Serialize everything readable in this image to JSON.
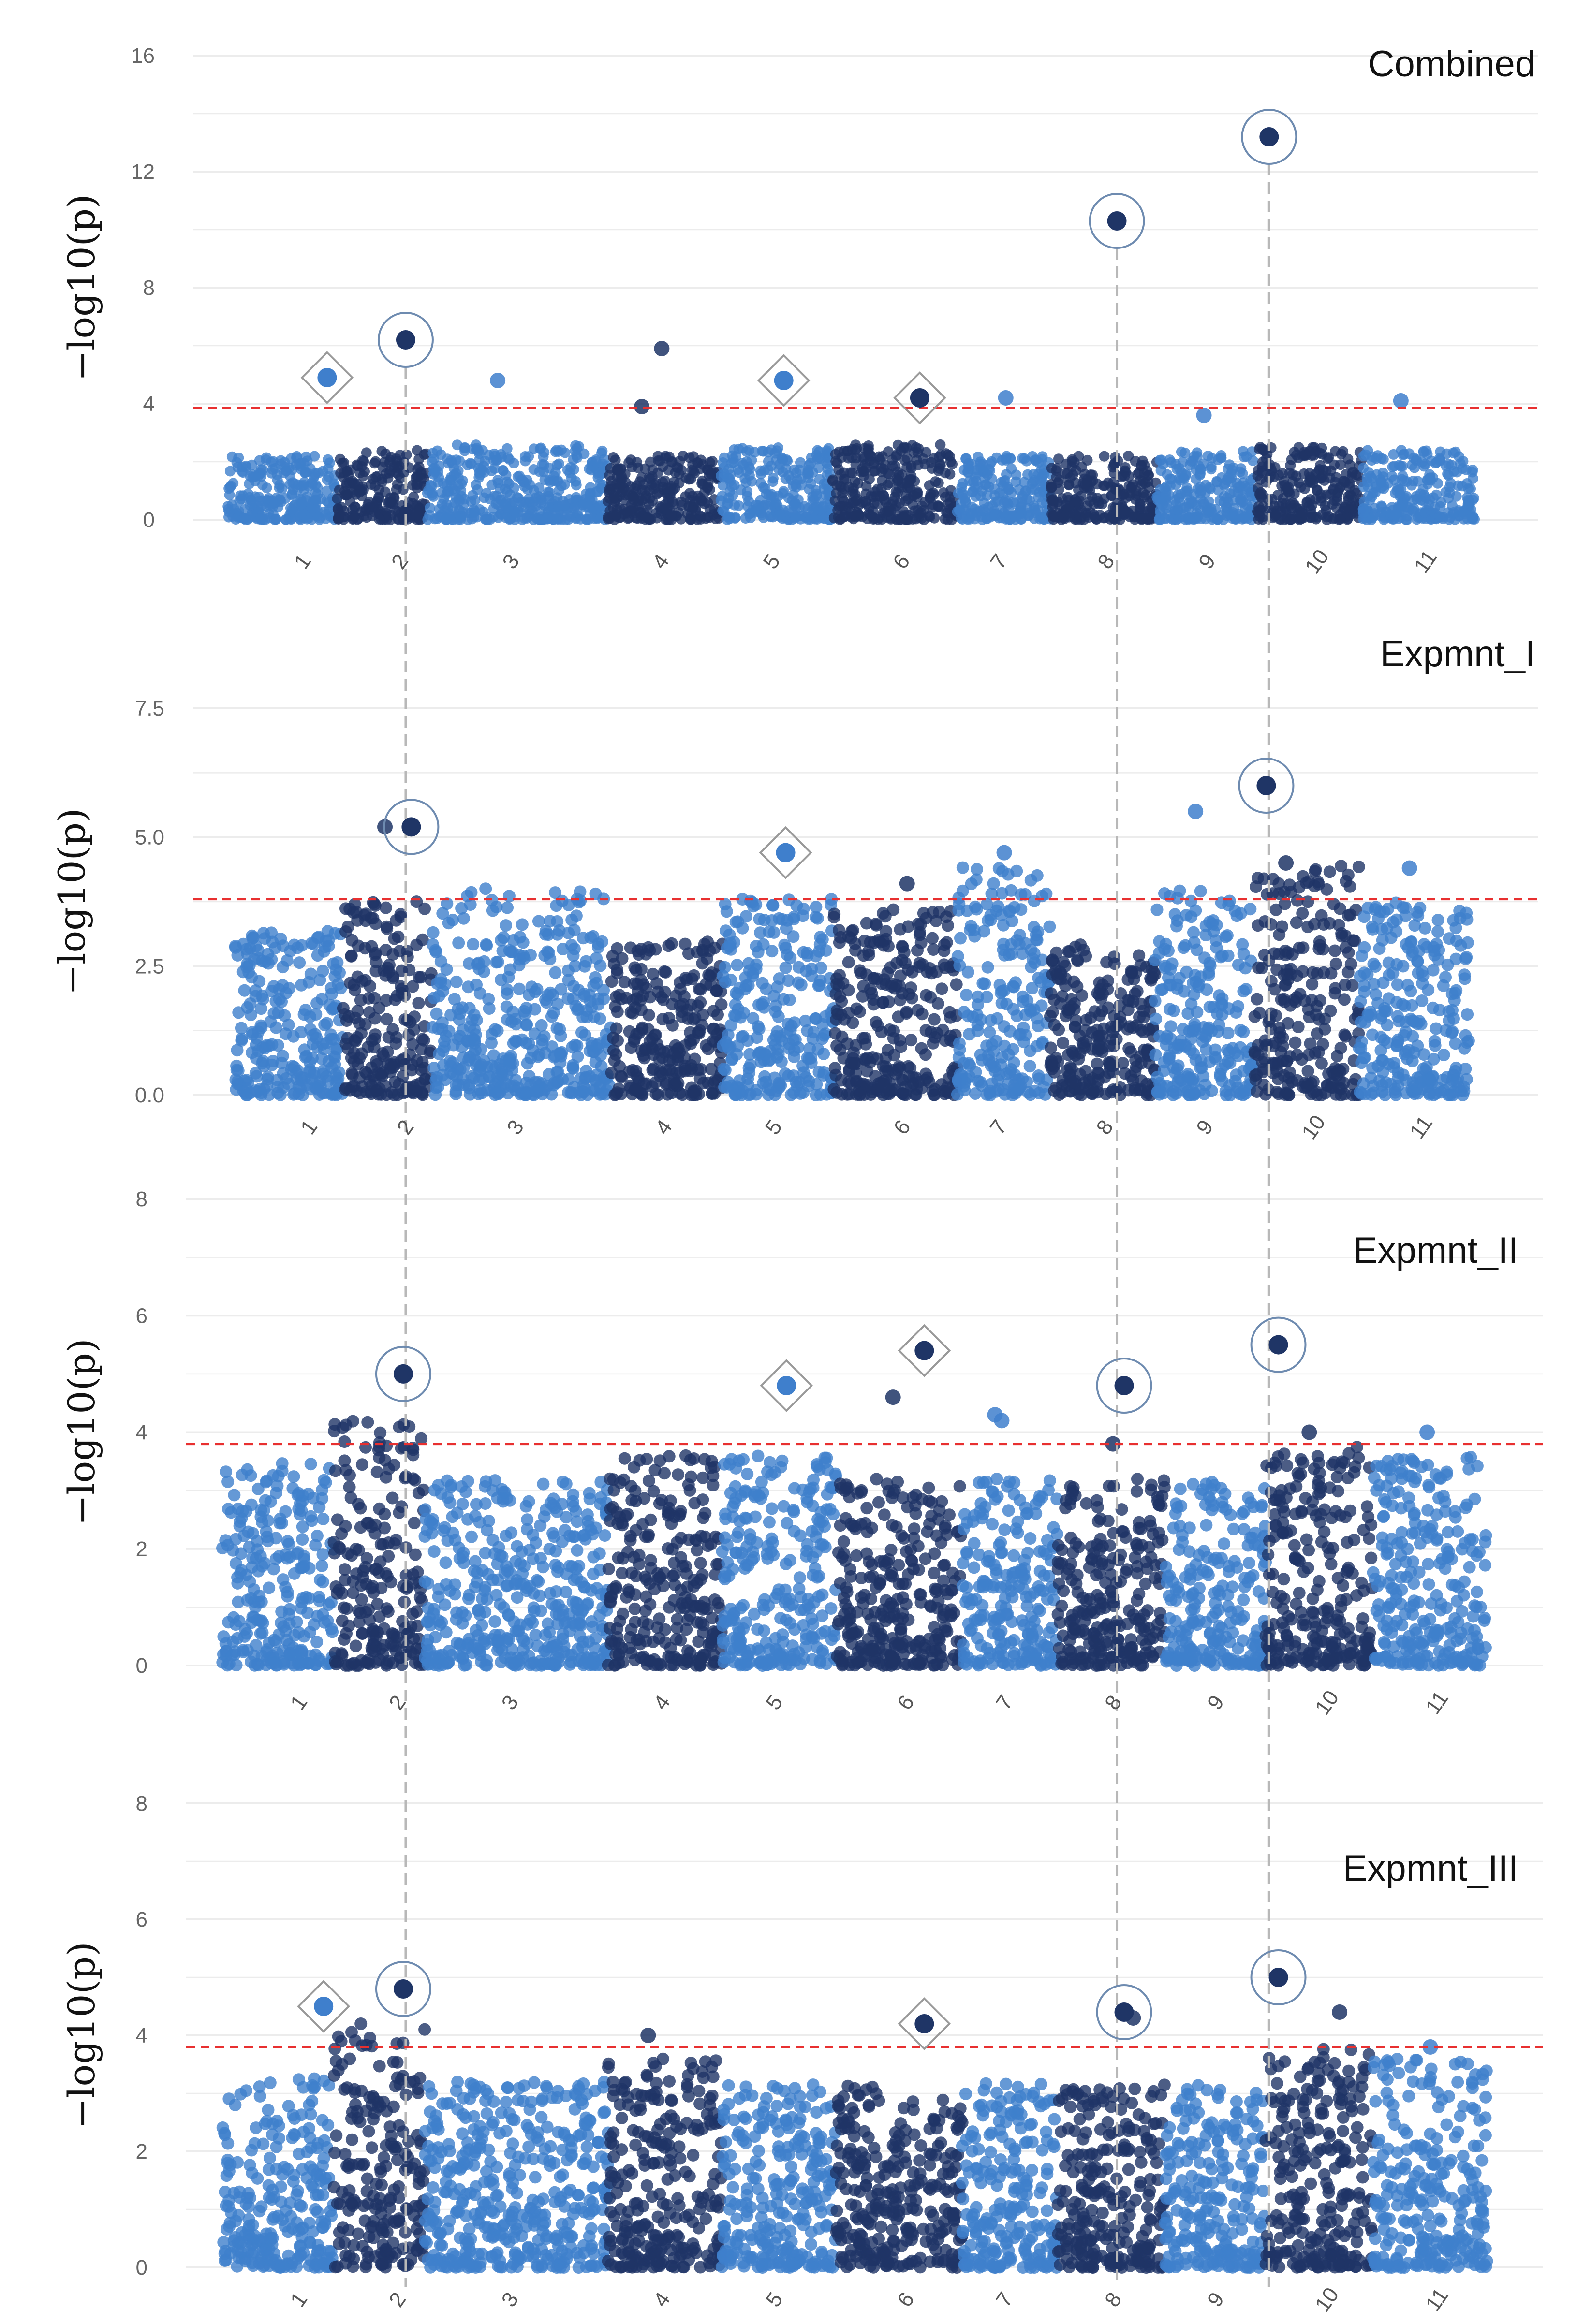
{
  "y_axis_label": "−log10(p)",
  "colors": {
    "light_blue": "#3f7fcc",
    "dark_blue": "#1f3566",
    "threshold": "#e83030",
    "gridline": "#ececec",
    "guide": "#b8b8b8",
    "marker": "#6e8bb0"
  },
  "chromosomes": [
    "1",
    "2",
    "3",
    "4",
    "5",
    "6",
    "7",
    "8",
    "9",
    "10",
    "11"
  ],
  "chart_data": [
    {
      "type": "scatter",
      "title": "Combined",
      "ylabel": "−log10(p)",
      "ylim": [
        0,
        16
      ],
      "yticks": [
        "0",
        "4",
        "8",
        "12",
        "16"
      ],
      "threshold": 3.85,
      "highlights_circle": [
        {
          "chr": "2",
          "value": 6.2
        },
        {
          "chr": "8",
          "value": 10.3
        },
        {
          "chr": "10",
          "value": 13.2
        }
      ],
      "highlights_diamond": [
        {
          "chr": "1",
          "value": 4.9
        },
        {
          "chr": "5",
          "value": 4.8
        },
        {
          "chr": "6",
          "value": 4.2
        }
      ],
      "other_peaks": [
        {
          "chr": "3",
          "value": 4.8
        },
        {
          "chr": "4",
          "value": 5.9
        },
        {
          "chr": "4",
          "value": 3.9
        },
        {
          "chr": "7",
          "value": 4.2
        },
        {
          "chr": "9",
          "value": 3.6
        },
        {
          "chr": "11",
          "value": 4.1
        }
      ]
    },
    {
      "type": "scatter",
      "title": "Expmnt_I",
      "ylabel": "−log10(p)",
      "ylim": [
        0,
        7.5
      ],
      "yticks": [
        "0.0",
        "2.5",
        "5.0",
        "7.5"
      ],
      "threshold": 3.8,
      "highlights_circle": [
        {
          "chr": "2",
          "value": 5.2
        },
        {
          "chr": "10",
          "value": 6.0
        }
      ],
      "highlights_diamond": [
        {
          "chr": "5",
          "value": 4.7
        }
      ],
      "other_peaks": [
        {
          "chr": "2",
          "value": 5.2
        },
        {
          "chr": "6",
          "value": 4.1
        },
        {
          "chr": "7",
          "value": 4.7
        },
        {
          "chr": "9",
          "value": 5.5
        },
        {
          "chr": "10",
          "value": 4.5
        },
        {
          "chr": "11",
          "value": 4.4
        }
      ]
    },
    {
      "type": "scatter",
      "title": "Expmnt_II",
      "ylabel": "−log10(p)",
      "ylim": [
        0,
        8
      ],
      "yticks": [
        "0",
        "2",
        "4",
        "6",
        "8"
      ],
      "threshold": 3.8,
      "highlights_circle": [
        {
          "chr": "2",
          "value": 5.0
        },
        {
          "chr": "8",
          "value": 4.8
        },
        {
          "chr": "10",
          "value": 5.5
        }
      ],
      "highlights_diamond": [
        {
          "chr": "5",
          "value": 4.8
        },
        {
          "chr": "6",
          "value": 5.4
        }
      ],
      "other_peaks": [
        {
          "chr": "6",
          "value": 4.6
        },
        {
          "chr": "7",
          "value": 4.3
        },
        {
          "chr": "7",
          "value": 4.2
        },
        {
          "chr": "8",
          "value": 3.8
        },
        {
          "chr": "10",
          "value": 4.0
        },
        {
          "chr": "11",
          "value": 4.0
        }
      ]
    },
    {
      "type": "scatter",
      "title": "Expmnt_III",
      "ylabel": "−log10(p)",
      "ylim": [
        0,
        8
      ],
      "yticks": [
        "0",
        "2",
        "4",
        "6",
        "8"
      ],
      "threshold": 3.8,
      "highlights_circle": [
        {
          "chr": "2",
          "value": 4.8
        },
        {
          "chr": "8",
          "value": 4.4
        },
        {
          "chr": "10",
          "value": 5.0
        }
      ],
      "highlights_diamond": [
        {
          "chr": "1",
          "value": 4.5
        },
        {
          "chr": "6",
          "value": 4.2
        }
      ],
      "other_peaks": [
        {
          "chr": "4",
          "value": 4.0
        },
        {
          "chr": "8",
          "value": 4.3
        },
        {
          "chr": "10",
          "value": 4.4
        },
        {
          "chr": "11",
          "value": 3.8
        }
      ]
    }
  ]
}
